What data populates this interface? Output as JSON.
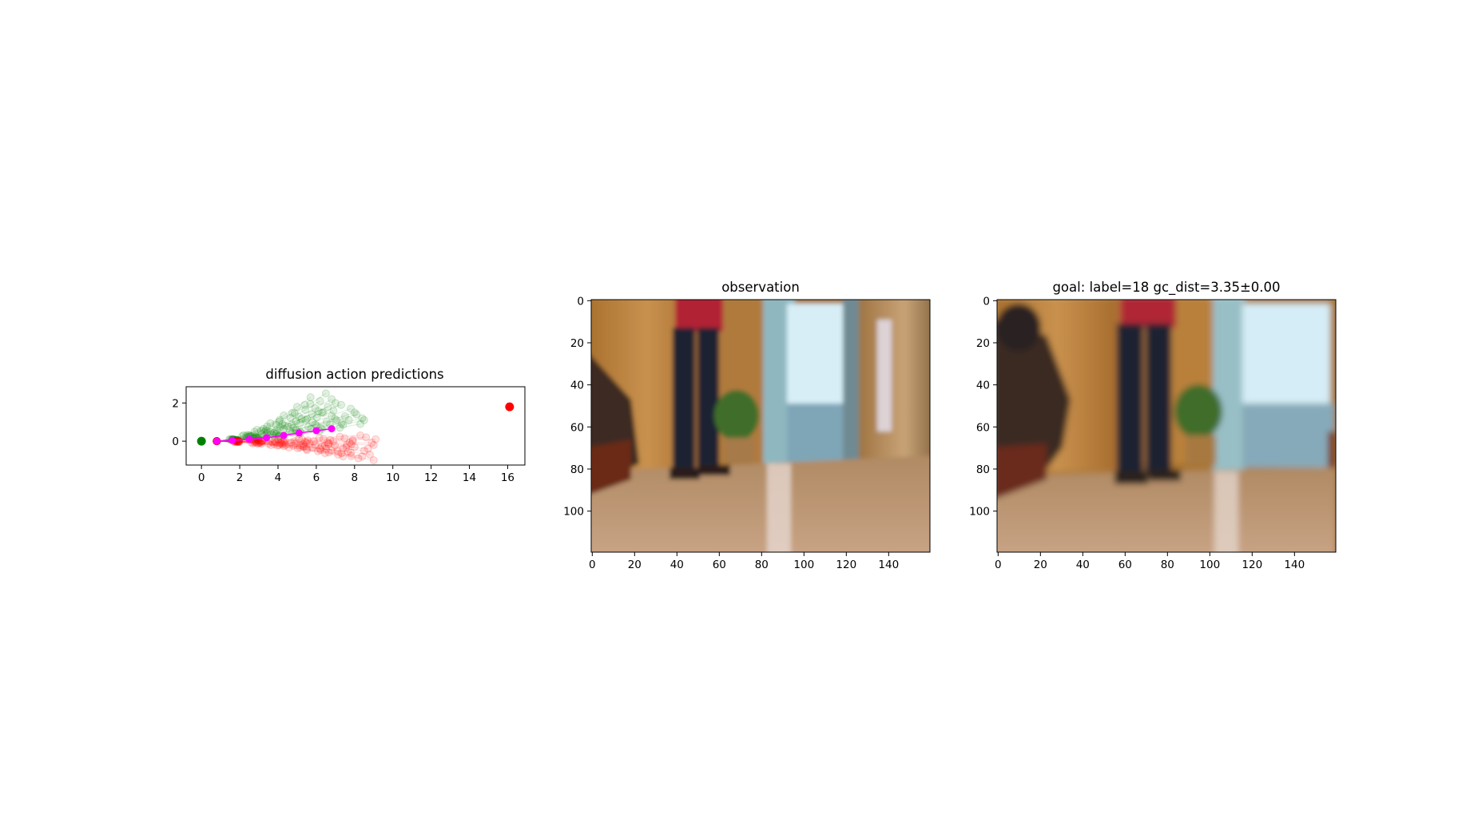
{
  "chart_data": [
    {
      "type": "scatter",
      "title": "diffusion action predictions",
      "xlim": [
        -0.8,
        16.9
      ],
      "ylim": [
        -1.25,
        2.85
      ],
      "xticks": [
        0,
        2,
        4,
        6,
        8,
        10,
        12,
        14,
        16
      ],
      "yticks": [
        0,
        2
      ],
      "grid": false,
      "start_point": {
        "x": 0,
        "y": 0,
        "color": "#008000"
      },
      "goal_point": {
        "x": 16.1,
        "y": 1.8,
        "color": "#ff0000"
      },
      "mean_trajectory": {
        "color": "#ff00ff",
        "x": [
          0.8,
          1.6,
          2.5,
          3.4,
          4.3,
          5.1,
          6.0,
          6.8
        ],
        "y": [
          0.0,
          0.04,
          0.1,
          0.18,
          0.3,
          0.43,
          0.55,
          0.65
        ]
      },
      "sample_families": [
        {
          "color": "#008000",
          "opacity": 0.12,
          "end_points": [
            [
              6.5,
              2.5
            ],
            [
              6.8,
              2.2
            ],
            [
              7.3,
              1.9
            ],
            [
              7.8,
              1.7
            ],
            [
              8.1,
              1.4
            ],
            [
              8.5,
              1.1
            ],
            [
              6.2,
              2.1
            ],
            [
              5.7,
              2.3
            ],
            [
              6.9,
              1.6
            ],
            [
              7.5,
              1.3
            ],
            [
              8.3,
              0.9
            ],
            [
              7.0,
              2.0
            ],
            [
              5.4,
              1.9
            ],
            [
              7.7,
              1.1
            ],
            [
              6.6,
              1.8
            ],
            [
              8.0,
              1.5
            ],
            [
              8.4,
              1.2
            ],
            [
              6.3,
              1.5
            ]
          ]
        },
        {
          "color": "#ff0000",
          "opacity": 0.12,
          "end_points": [
            [
              9.0,
              -1.0
            ],
            [
              8.8,
              -0.7
            ],
            [
              8.5,
              -0.5
            ],
            [
              9.0,
              -0.2
            ],
            [
              8.2,
              -0.9
            ],
            [
              7.8,
              -0.6
            ],
            [
              8.6,
              0.2
            ],
            [
              7.4,
              -0.8
            ],
            [
              8.0,
              -0.3
            ],
            [
              8.7,
              -0.4
            ],
            [
              7.9,
              0.0
            ],
            [
              8.4,
              -0.8
            ],
            [
              7.1,
              -0.5
            ],
            [
              9.1,
              0.1
            ],
            [
              7.6,
              -0.2
            ],
            [
              8.3,
              0.3
            ],
            [
              8.9,
              -0.1
            ]
          ]
        }
      ]
    },
    {
      "type": "image",
      "title": "observation",
      "xticks": [
        0,
        20,
        40,
        60,
        80,
        100,
        120,
        140
      ],
      "yticks": [
        0,
        20,
        40,
        60,
        80,
        100
      ]
    },
    {
      "type": "image",
      "title": "goal: label=18 gc_dist=3.35±0.00",
      "xticks": [
        0,
        20,
        40,
        60,
        80,
        100,
        120,
        140
      ],
      "yticks": [
        0,
        20,
        40,
        60,
        80,
        100
      ]
    }
  ]
}
